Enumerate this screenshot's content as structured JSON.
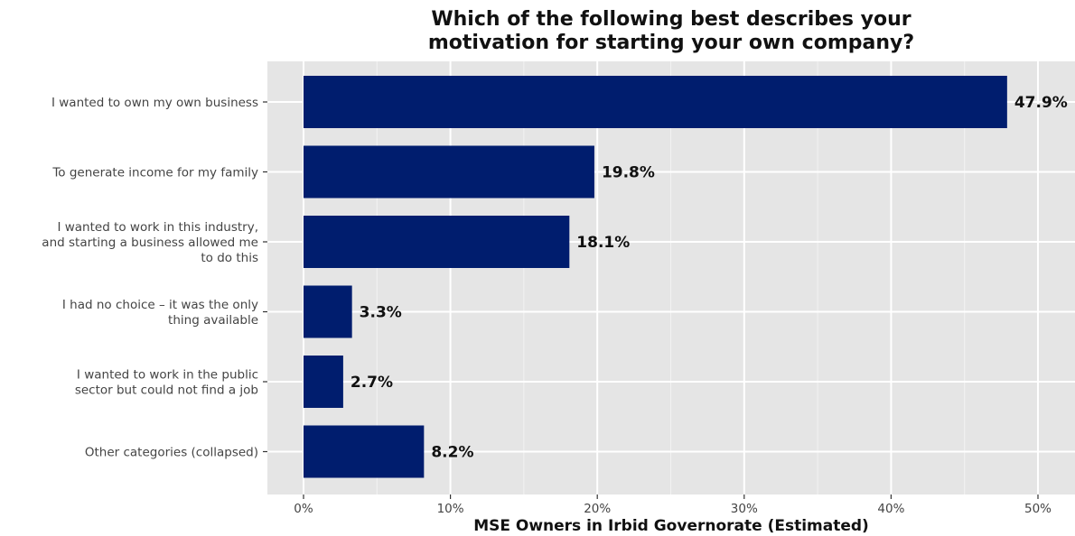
{
  "chart_data": {
    "type": "bar",
    "orientation": "horizontal",
    "title": [
      "Which of the following best describes your",
      "motivation for starting your own company?"
    ],
    "xlabel": "MSE Owners in Irbid Governorate (Estimated)",
    "ylabel": "",
    "xlim": [
      0,
      50
    ],
    "x_ticks": [
      0,
      10,
      20,
      30,
      40,
      50
    ],
    "x_tick_labels": [
      "0%",
      "10%",
      "20%",
      "30%",
      "40%",
      "50%"
    ],
    "grid": true,
    "categories": [
      [
        "I wanted to own my own business"
      ],
      [
        "To generate income for my family"
      ],
      [
        "I wanted to work in this industry,",
        "and starting a business allowed me",
        "to do this"
      ],
      [
        "I had no choice – it was the only",
        "thing available"
      ],
      [
        "I wanted to work in the public",
        "sector but could not find a job"
      ],
      [
        "Other categories (collapsed)"
      ]
    ],
    "values": [
      47.9,
      19.8,
      18.1,
      3.3,
      2.7,
      8.2
    ],
    "value_labels": [
      "47.9%",
      "19.8%",
      "18.1%",
      "3.3%",
      "2.7%",
      "8.2%"
    ],
    "colors": {
      "bar": "#001d6e",
      "panel": "#e5e5e5",
      "grid_major": "#ffffff",
      "grid_minor": "#f2f2f2",
      "tick_text": "#444444",
      "text": "#111111"
    }
  }
}
